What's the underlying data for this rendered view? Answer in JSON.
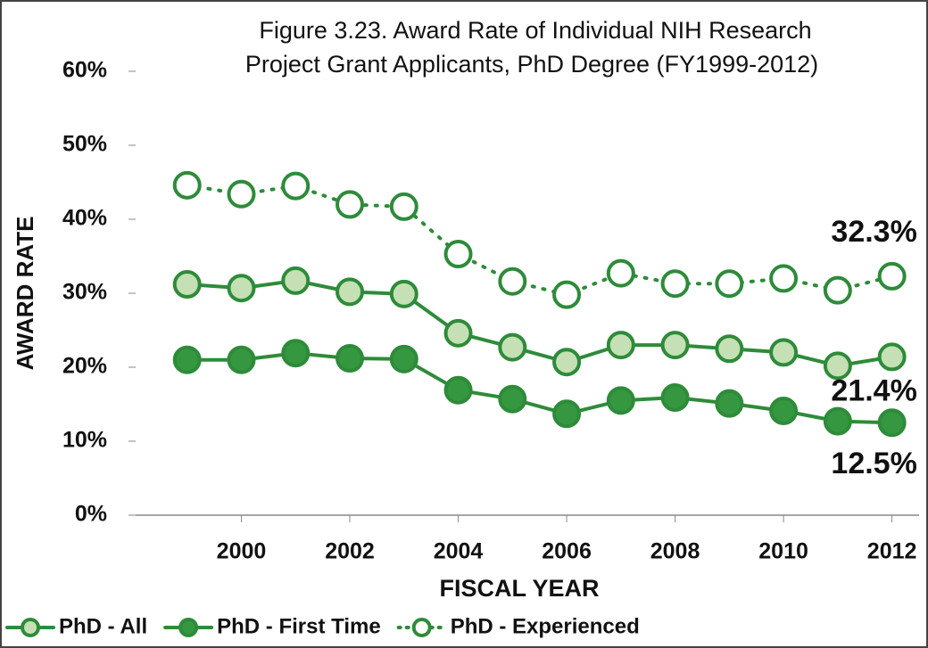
{
  "chart_data": {
    "type": "line",
    "title": [
      "Figure 3.23. Award Rate of Individual NIH Research",
      "Project Grant Applicants, PhD Degree (FY1999-2012)"
    ],
    "xlabel": "FISCAL YEAR",
    "ylabel": "AWARD RATE",
    "x": [
      1999,
      2000,
      2001,
      2002,
      2003,
      2004,
      2005,
      2006,
      2007,
      2008,
      2009,
      2010,
      2011,
      2012
    ],
    "series": [
      {
        "name": "PhD - All",
        "color": "#2e8b3a",
        "fill": "#c5e0b4",
        "dash": "solid",
        "values": [
          31.2,
          30.7,
          31.7,
          30.2,
          29.9,
          24.6,
          22.7,
          20.7,
          23.0,
          23.0,
          22.5,
          22.0,
          20.2,
          21.4
        ],
        "value_labels": [
          null,
          null,
          null,
          null,
          null,
          null,
          null,
          null,
          null,
          null,
          null,
          null,
          null,
          "21.4%"
        ],
        "label_color": "#8fce7f"
      },
      {
        "name": "PhD - First Time",
        "color": "#2e8b3a",
        "fill": "#35973f",
        "dash": "solid",
        "values": [
          21.0,
          21.0,
          21.9,
          21.2,
          21.1,
          16.9,
          15.7,
          13.7,
          15.5,
          15.9,
          15.1,
          14.1,
          12.7,
          12.5
        ],
        "value_labels": [
          null,
          null,
          null,
          null,
          null,
          null,
          null,
          null,
          null,
          null,
          null,
          null,
          null,
          "12.5%"
        ],
        "label_color": "#3a9a44"
      },
      {
        "name": "PhD - Experienced",
        "color": "#2e8b3a",
        "fill": "#ffffff",
        "dash": "dotted",
        "values": [
          44.6,
          43.4,
          44.5,
          42.0,
          41.7,
          35.3,
          31.6,
          29.8,
          32.7,
          31.3,
          31.3,
          32.0,
          30.4,
          32.3
        ],
        "value_labels": [
          null,
          null,
          null,
          null,
          null,
          null,
          null,
          null,
          null,
          null,
          null,
          null,
          null,
          "32.3%"
        ],
        "label_color": "#1e4d2b"
      }
    ],
    "xlim": [
      1998.05,
      2012.5
    ],
    "xticks": [
      2000,
      2002,
      2004,
      2006,
      2008,
      2010,
      2012
    ],
    "ylim": [
      0,
      60
    ],
    "yticks": [
      {
        "value": 0,
        "label": "0%"
      },
      {
        "value": 10,
        "label": "10%"
      },
      {
        "value": 20,
        "label": "20%"
      },
      {
        "value": 30,
        "label": "30%"
      },
      {
        "value": 40,
        "label": "40%"
      },
      {
        "value": 50,
        "label": "50%"
      },
      {
        "value": 60,
        "label": "60%"
      }
    ],
    "grid": false,
    "legend": "bottom"
  }
}
